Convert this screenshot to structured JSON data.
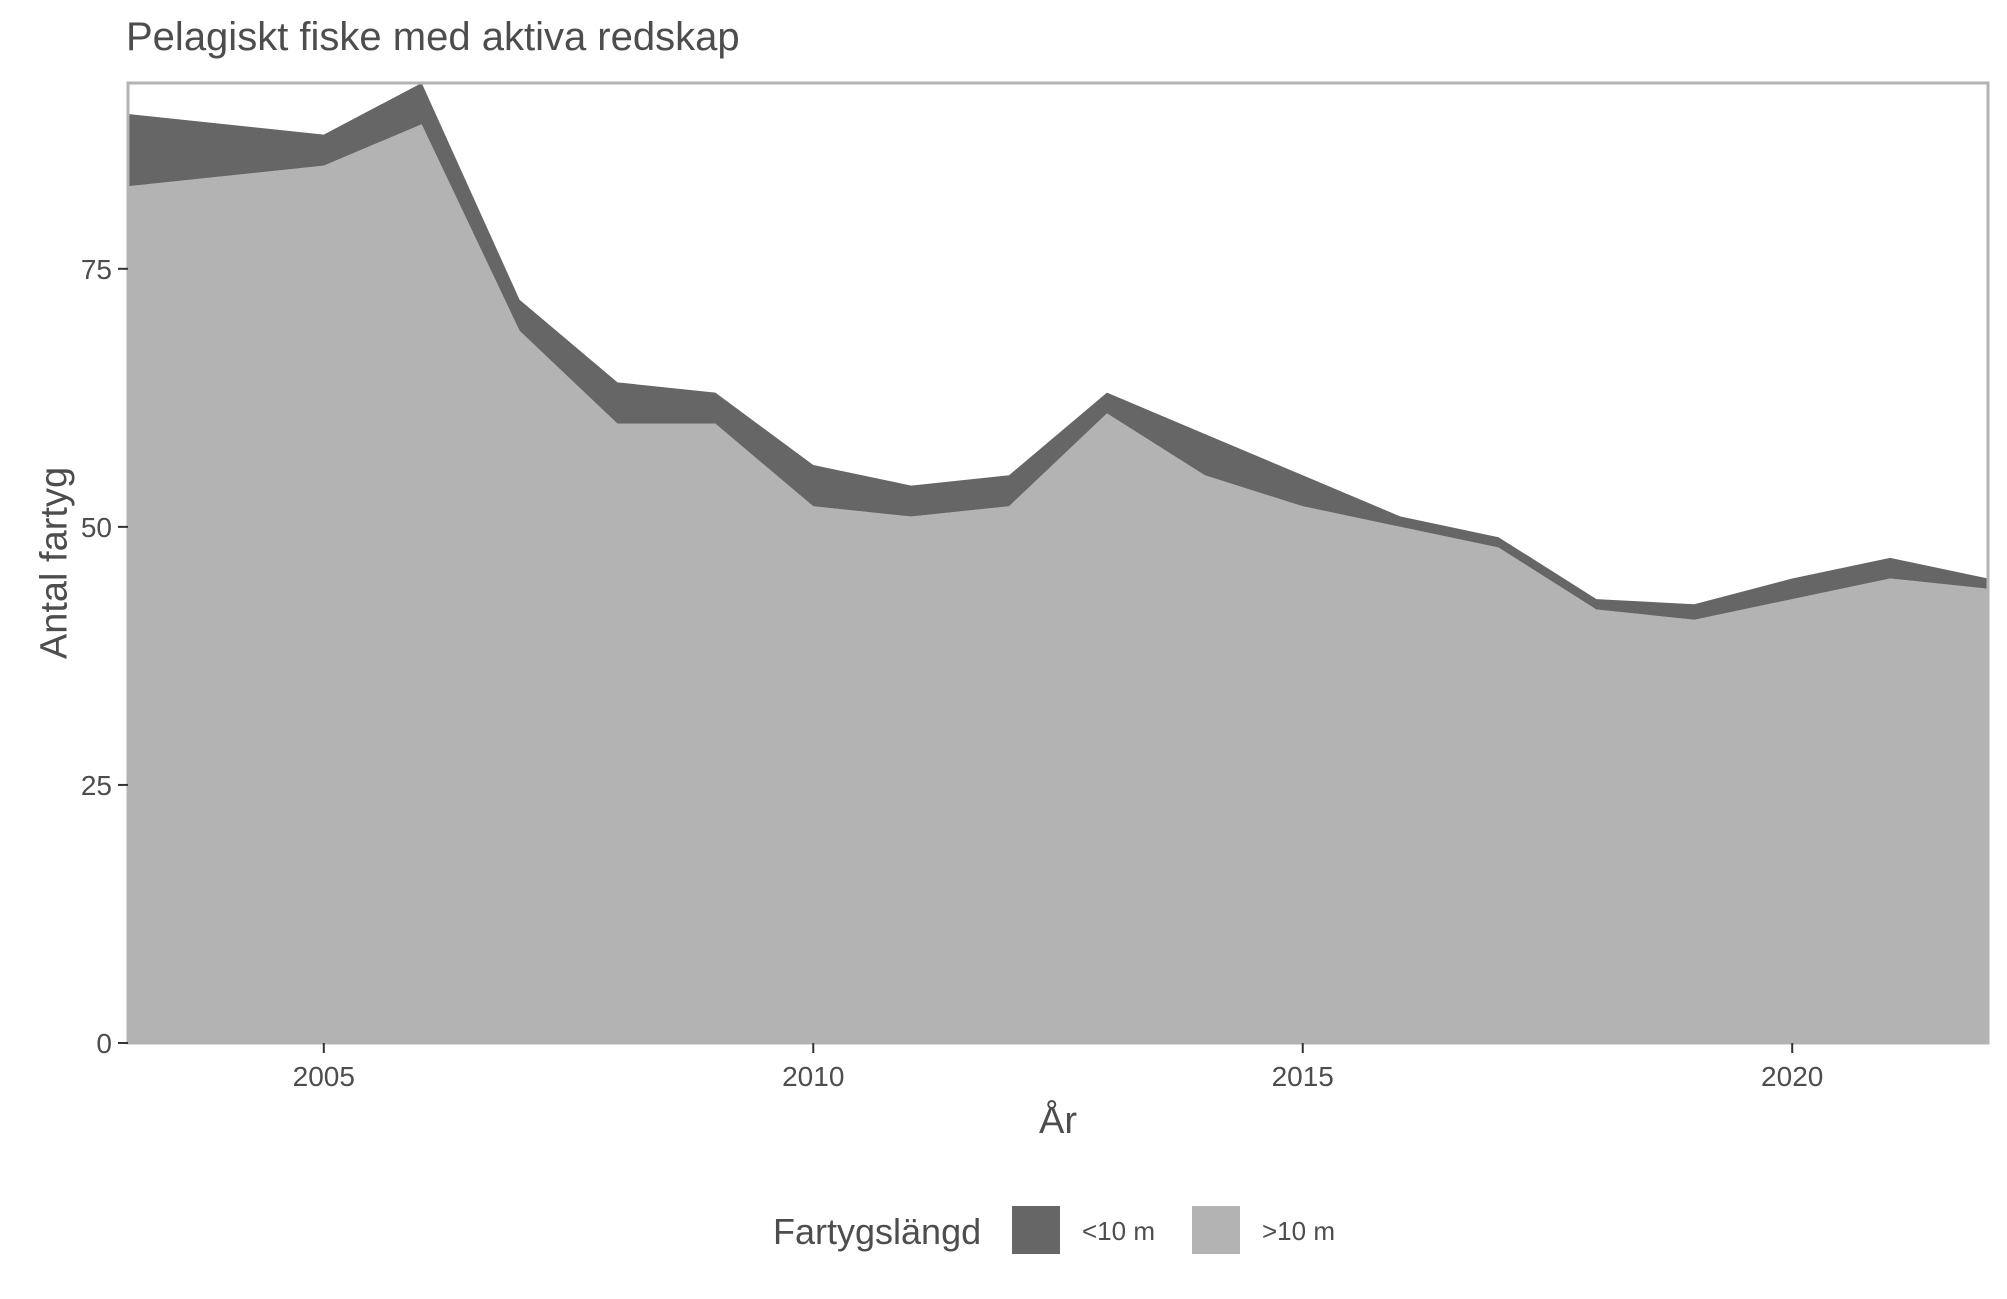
{
  "chart_data": {
    "type": "area",
    "stacked": true,
    "title": "Pelagiskt fiske med aktiva redskap",
    "xlabel": "År",
    "ylabel": "Antal fartyg",
    "x": [
      2003,
      2005,
      2006,
      2007,
      2008,
      2009,
      2010,
      2011,
      2012,
      2013,
      2014,
      2015,
      2016,
      2017,
      2018,
      2019,
      2020,
      2021,
      2022
    ],
    "xlim": [
      2003,
      2022
    ],
    "ylim": [
      0,
      93
    ],
    "x_ticks": [
      2005,
      2010,
      2015,
      2020
    ],
    "y_ticks": [
      0,
      25,
      50,
      75
    ],
    "x_tick_labels": [
      "2005",
      "2010",
      "2015",
      "2020"
    ],
    "y_tick_labels": [
      "0",
      "25",
      "50",
      "75"
    ],
    "grid": false,
    "legend_position": "bottom",
    "legend_title": "Fartygslängd",
    "series": [
      {
        "name": ">10 m",
        "color": "#b3b3b3",
        "values": [
          83,
          85,
          89,
          69,
          60,
          60,
          52,
          51,
          52,
          61,
          55,
          52,
          50,
          48,
          42,
          41,
          43,
          45,
          44
        ]
      },
      {
        "name": "<10 m",
        "color": "#666666",
        "values": [
          7,
          3,
          4,
          3,
          4,
          3,
          4,
          3,
          3,
          2,
          4,
          3,
          1,
          1,
          1,
          1.5,
          2,
          2,
          1
        ]
      }
    ],
    "legend_order": [
      "<10 m",
      ">10 m"
    ]
  }
}
